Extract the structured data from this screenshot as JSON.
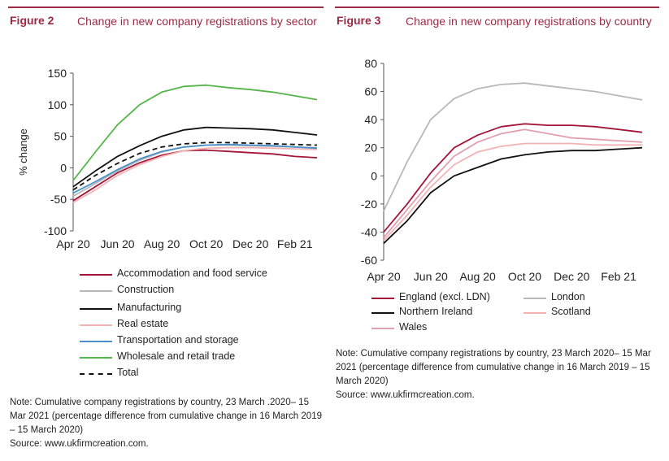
{
  "figures": [
    {
      "label": "Figure 2",
      "title": "Change in new company registrations by sector",
      "note": "Note: Cumulative company registrations by country, 23 March .2020– 15 Mar 2021 (percentage difference from cumulative change in 16 March 2019 – 15 March 2020)",
      "source": "Source: www.ukfirmcreation.com."
    },
    {
      "label": "Figure 3",
      "title": "Change in new company registrations by country",
      "note": "Note: Cumulative company registrations by country, 23 March 2020– 15 Mar 2021 (percentage difference from cumulative change in 16 March 2019 – 15 March 2020)",
      "source": "Source: www.ukfirmcreation.com."
    }
  ],
  "chart_data": [
    {
      "type": "line",
      "title": "Change in new company registrations by sector",
      "ylabel": "% change",
      "xlabel": "",
      "ylim": [
        -100,
        150
      ],
      "yticks": [
        -100,
        -50,
        0,
        50,
        100,
        150
      ],
      "x": [
        "Apr 20",
        "May 20",
        "Jun 20",
        "Jul 20",
        "Aug 20",
        "Sep 20",
        "Oct 20",
        "Nov 20",
        "Dec 20",
        "Jan 21",
        "Feb 21",
        "Mar 21"
      ],
      "xticks": [
        "Apr 20",
        "Jun 20",
        "Aug 20",
        "Oct 20",
        "Dec 20",
        "Feb 21"
      ],
      "grid": false,
      "legend": "below",
      "series": [
        {
          "name": "Accommodation and food service",
          "color": "#a3163a",
          "dash": false,
          "values": [
            -52,
            -30,
            -8,
            8,
            20,
            27,
            28,
            26,
            24,
            22,
            18,
            16
          ]
        },
        {
          "name": "Construction",
          "color": "#b8b8b8",
          "dash": false,
          "values": [
            -45,
            -25,
            -5,
            12,
            25,
            33,
            36,
            36,
            35,
            34,
            33,
            32
          ]
        },
        {
          "name": "Manufacturing",
          "color": "#111111",
          "dash": false,
          "values": [
            -30,
            -5,
            18,
            35,
            50,
            60,
            64,
            63,
            62,
            60,
            56,
            52
          ]
        },
        {
          "name": "Real estate",
          "color": "#f3b3b3",
          "dash": false,
          "values": [
            -55,
            -35,
            -12,
            5,
            18,
            27,
            31,
            32,
            32,
            31,
            30,
            29
          ]
        },
        {
          "name": "Transportation and storage",
          "color": "#4a90c8",
          "dash": false,
          "values": [
            -40,
            -22,
            -3,
            14,
            26,
            33,
            36,
            37,
            36,
            35,
            33,
            31
          ]
        },
        {
          "name": "Wholesale and retail trade",
          "color": "#56b54a",
          "dash": false,
          "values": [
            -20,
            25,
            68,
            100,
            120,
            129,
            131,
            127,
            124,
            120,
            114,
            108
          ]
        },
        {
          "name": "Total",
          "color": "#111111",
          "dash": true,
          "values": [
            -35,
            -12,
            7,
            23,
            33,
            38,
            40,
            40,
            39,
            38,
            37,
            36
          ]
        }
      ]
    },
    {
      "type": "line",
      "title": "Change in new company registrations by country",
      "xlabel": "",
      "ylabel": "",
      "ylim": [
        -60,
        80
      ],
      "yticks": [
        -60,
        -40,
        -20,
        0,
        20,
        40,
        60,
        80
      ],
      "x": [
        "Apr 20",
        "May 20",
        "Jun 20",
        "Jul 20",
        "Aug 20",
        "Sep 20",
        "Oct 20",
        "Nov 20",
        "Dec 20",
        "Jan 21",
        "Feb 21",
        "Mar 21"
      ],
      "xticks": [
        "Apr 20",
        "Jun 20",
        "Aug 20",
        "Oct 20",
        "Dec 20",
        "Feb 21"
      ],
      "grid": false,
      "legend": "below",
      "series": [
        {
          "name": "England (excl. LDN)",
          "color": "#a3163a",
          "dash": false,
          "values": [
            -40,
            -20,
            2,
            20,
            29,
            35,
            37,
            36,
            36,
            35,
            33,
            31
          ]
        },
        {
          "name": "London",
          "color": "#b8b8b8",
          "dash": false,
          "values": [
            -25,
            10,
            40,
            55,
            62,
            65,
            66,
            64,
            62,
            60,
            57,
            54
          ]
        },
        {
          "name": "Northern Ireland",
          "color": "#111111",
          "dash": false,
          "values": [
            -48,
            -32,
            -12,
            0,
            6,
            12,
            15,
            17,
            18,
            18,
            19,
            20
          ]
        },
        {
          "name": "Scotland",
          "color": "#f3b3b3",
          "dash": false,
          "values": [
            -46,
            -28,
            -8,
            8,
            17,
            21,
            23,
            23,
            23,
            22,
            22,
            22
          ]
        },
        {
          "name": "Wales",
          "color": "#e0a0b0",
          "dash": false,
          "values": [
            -44,
            -24,
            -4,
            14,
            24,
            30,
            33,
            30,
            27,
            26,
            25,
            24
          ]
        }
      ]
    }
  ]
}
